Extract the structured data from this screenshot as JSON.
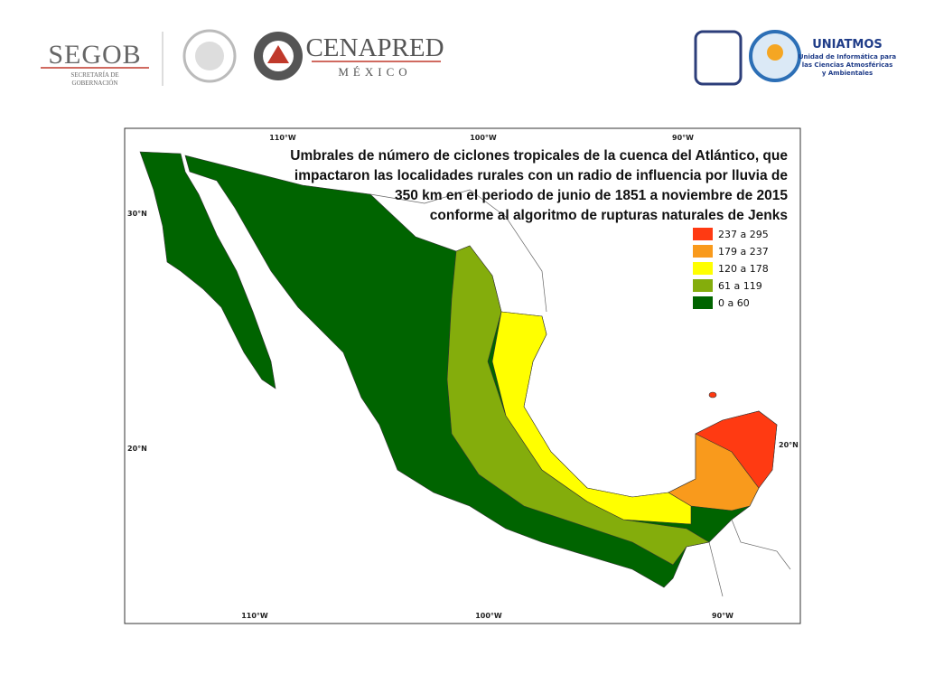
{
  "header": {
    "segob": {
      "name": "SEGOB",
      "sub": [
        "SECRETARÍA DE",
        "GOBERNACIÓN"
      ]
    },
    "cenapred": {
      "name": "CENAPRED",
      "sub": "MÉXICO"
    },
    "uniatmos": {
      "name": "UNIATMOS",
      "lines": [
        "Unidad de Informática para",
        "las Ciencias Atmosféricas",
        "y Ambientales"
      ]
    }
  },
  "map": {
    "title": [
      "Umbrales de número de ciclones tropicales de la cuenca del Atlántico, que",
      "impactaron las localidades rurales con un radio de influencia por lluvia de",
      "350 km en el periodo de junio de 1851 a noviembre de 2015",
      "conforme al algoritmo de rupturas naturales de Jenks"
    ],
    "legend": [
      {
        "label": "237 a 295",
        "color": "#ff3a12"
      },
      {
        "label": "179 a 237",
        "color": "#f99a1c"
      },
      {
        "label": "120 a 178",
        "color": "#ffff00"
      },
      {
        "label": "61 a 119",
        "color": "#84ad0c"
      },
      {
        "label": "0 a 60",
        "color": "#006400"
      }
    ],
    "lon_top": [
      "110°W",
      "100°W",
      "90°W"
    ],
    "lon_bottom": [
      "110°W",
      "100°W",
      "90°W"
    ],
    "lat_left": [
      "30°N",
      "20°N"
    ],
    "lat_right": [
      "20°N"
    ]
  }
}
